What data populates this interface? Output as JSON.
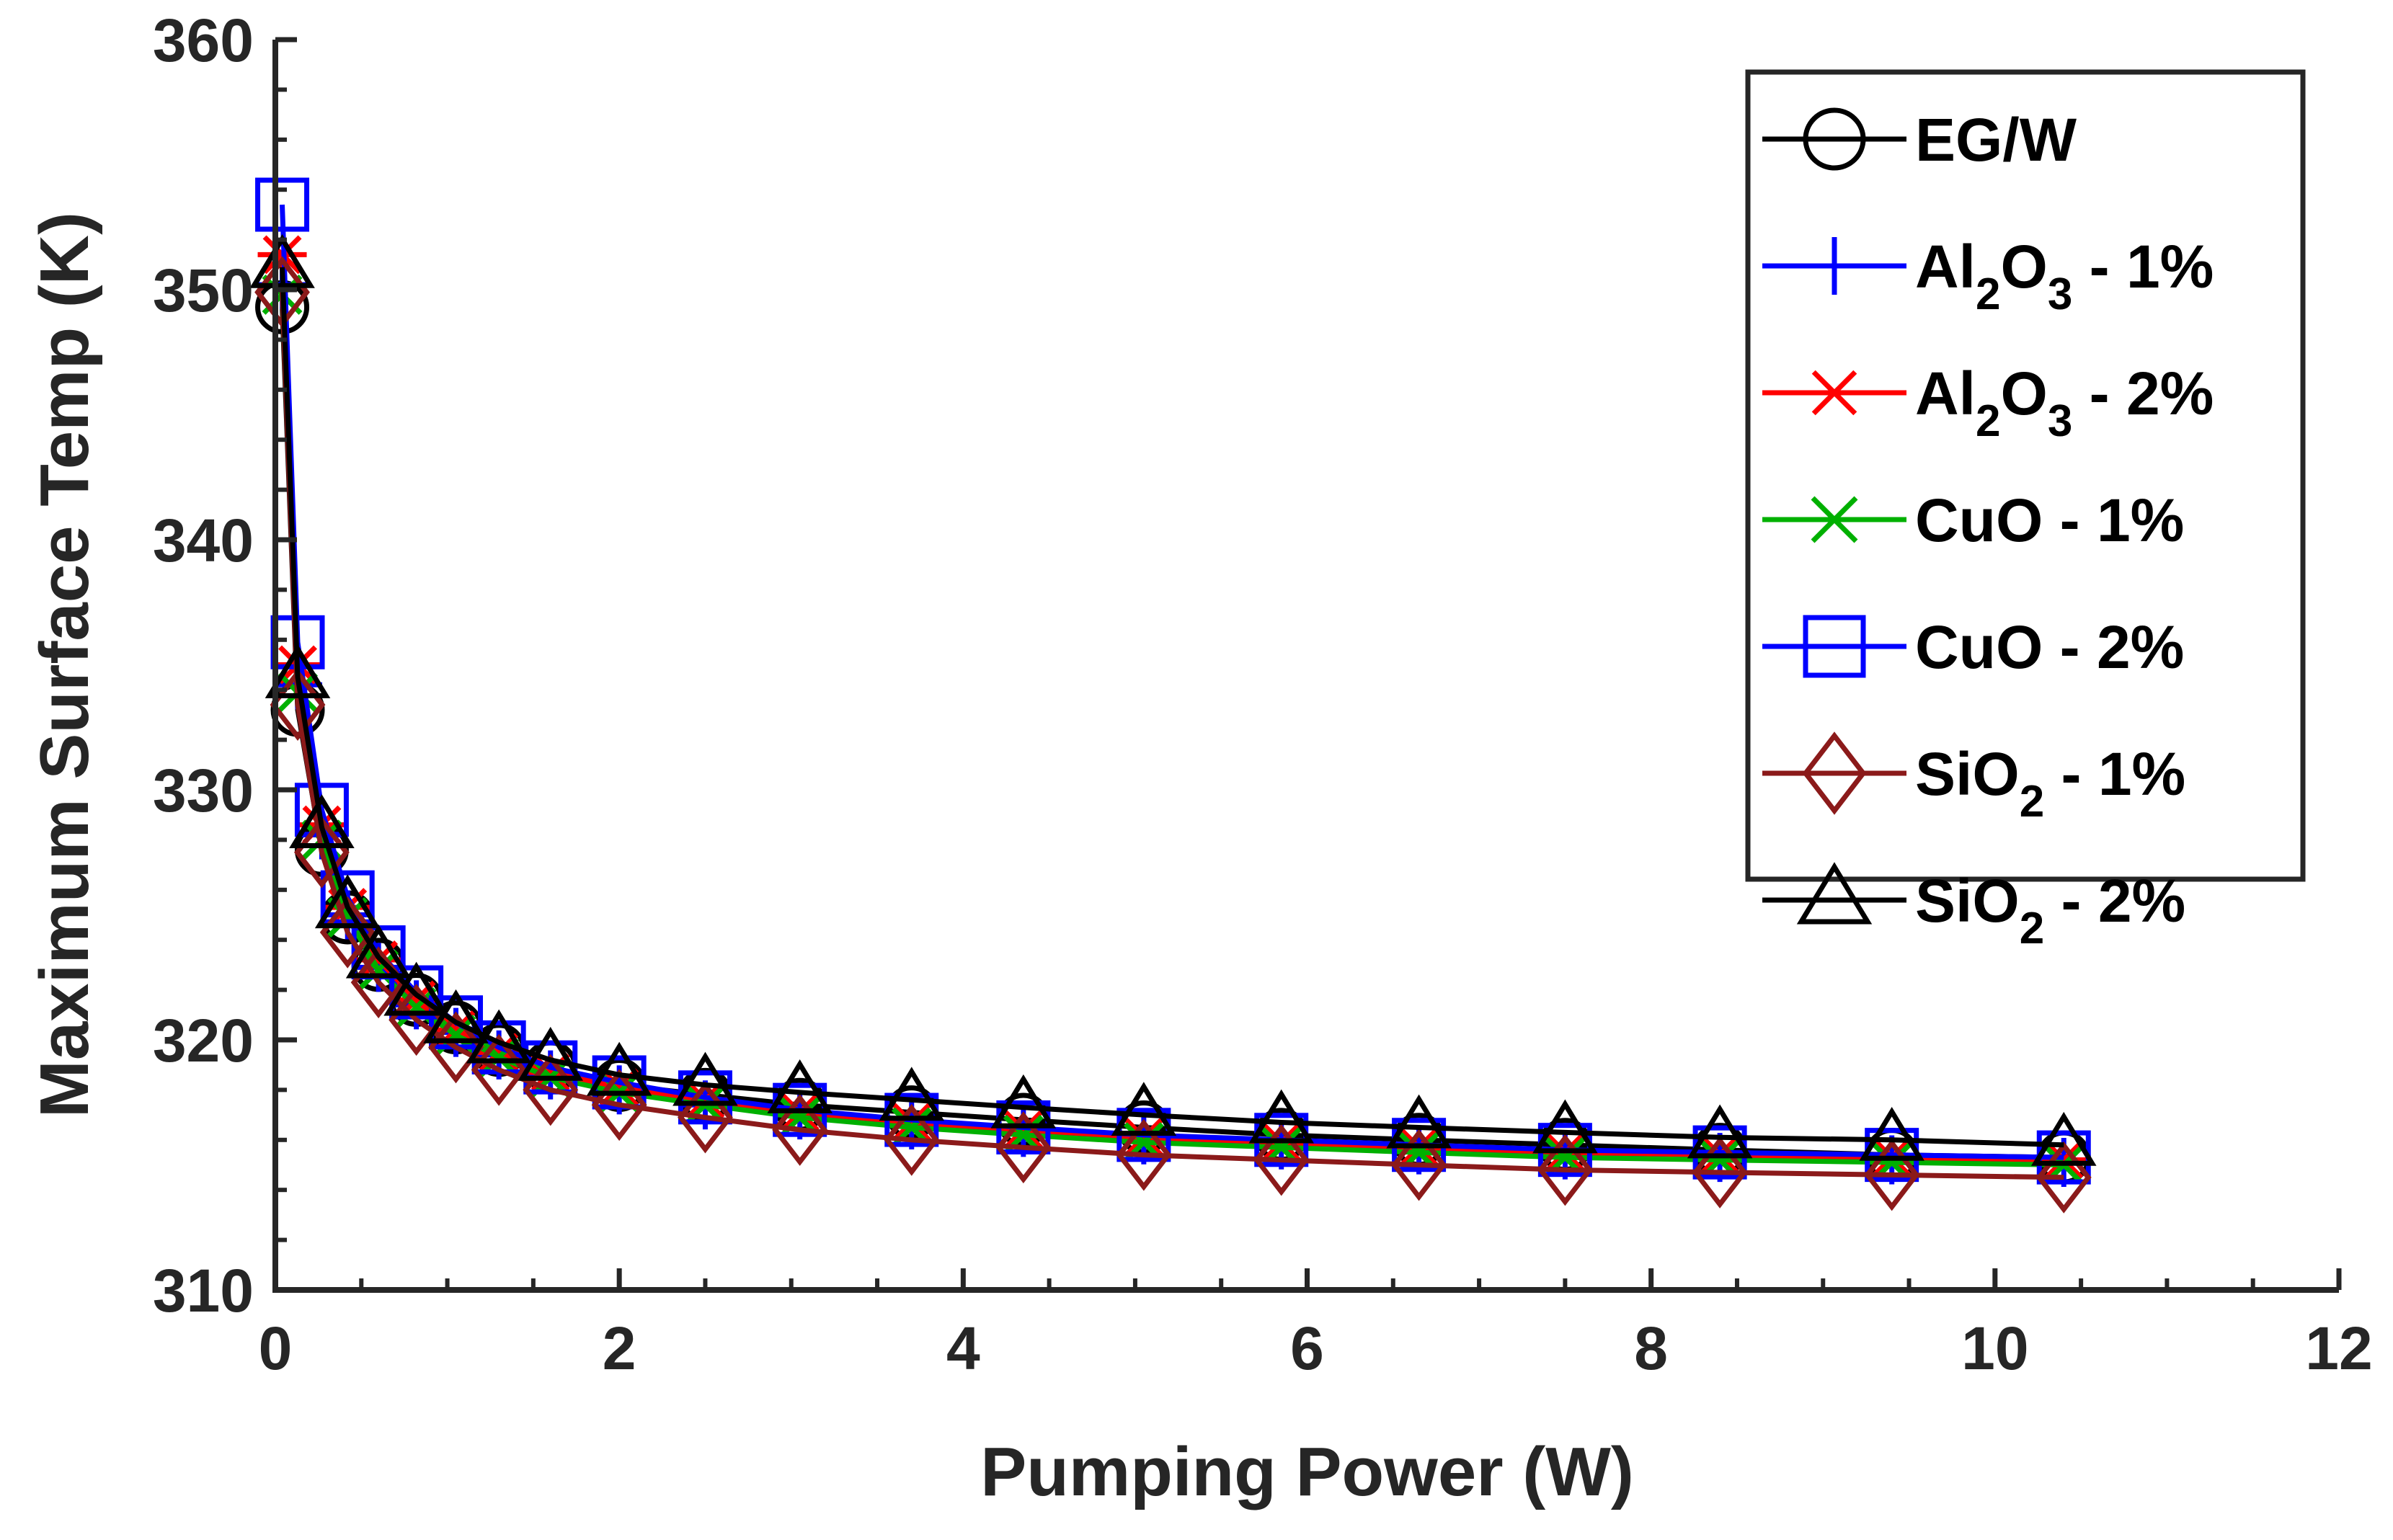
{
  "chart_data": {
    "type": "line",
    "title": "",
    "xlabel": "Pumping Power (W)",
    "ylabel": "Maximum Surface Temp (K)",
    "xlim": [
      0,
      12
    ],
    "ylim": [
      310,
      360
    ],
    "xticks": [
      0,
      2,
      4,
      6,
      8,
      10,
      12
    ],
    "yticks": [
      310,
      320,
      330,
      340,
      350,
      360
    ],
    "x_tick_labels": [
      "0",
      "2",
      "4",
      "6",
      "8",
      "10",
      "12"
    ],
    "y_tick_labels": [
      "310",
      "320",
      "330",
      "340",
      "350",
      "360"
    ],
    "grid": false,
    "legend_position": "top-right",
    "x": [
      0.04,
      0.13,
      0.27,
      0.42,
      0.6,
      0.82,
      1.05,
      1.3,
      1.6,
      2.0,
      2.5,
      3.05,
      3.7,
      4.35,
      5.05,
      5.85,
      6.65,
      7.5,
      8.4,
      9.4,
      10.4
    ],
    "series": [
      {
        "name": "EG/W",
        "label_main": "EG/W",
        "sub": "",
        "suffix": "",
        "color": "#000000",
        "marker": "circle",
        "values": [
          349.3,
          333.2,
          327.6,
          324.9,
          323.0,
          321.6,
          320.5,
          319.6,
          318.9,
          318.2,
          317.8,
          317.4,
          317.1,
          316.8,
          316.5,
          316.2,
          316.0,
          315.8,
          315.6,
          315.4,
          315.3
        ]
      },
      {
        "name": "Al2O3 - 1%",
        "label_main": "Al",
        "sub": "2",
        "mid": "O",
        "sub2": "3",
        "suffix": " - 1%",
        "color": "#0000ff",
        "marker": "plus",
        "values": [
          350.2,
          334.2,
          328.2,
          325.0,
          322.9,
          321.4,
          320.3,
          319.4,
          318.6,
          318.0,
          317.4,
          317.0,
          316.6,
          316.3,
          316.0,
          315.8,
          315.6,
          315.4,
          315.3,
          315.2,
          315.1
        ]
      },
      {
        "name": "Al2O3 - 2%",
        "label_main": "Al",
        "sub": "2",
        "mid": "O",
        "sub2": "3",
        "suffix": " - 2%",
        "color": "#ff0000",
        "marker": "asterisk",
        "values": [
          351.4,
          335.0,
          328.6,
          325.3,
          323.2,
          321.6,
          320.4,
          319.5,
          318.7,
          318.1,
          317.6,
          317.1,
          316.7,
          316.4,
          316.1,
          315.9,
          315.7,
          315.5,
          315.4,
          315.3,
          315.2
        ]
      },
      {
        "name": "CuO - 1%",
        "label_main": "CuO",
        "sub": "",
        "suffix": " - 1%",
        "color": "#00b000",
        "marker": "x",
        "values": [
          349.8,
          333.9,
          328.0,
          324.9,
          322.8,
          321.3,
          320.2,
          319.3,
          318.5,
          317.9,
          317.4,
          316.9,
          316.5,
          316.2,
          315.9,
          315.7,
          315.5,
          315.3,
          315.2,
          315.1,
          315.0
        ]
      },
      {
        "name": "CuO - 2%",
        "label_main": "CuO",
        "sub": "",
        "suffix": " - 2%",
        "color": "#0000ff",
        "marker": "square",
        "values": [
          353.4,
          335.9,
          329.2,
          325.7,
          323.5,
          321.9,
          320.7,
          319.7,
          318.9,
          318.3,
          317.7,
          317.2,
          316.8,
          316.5,
          316.2,
          316.0,
          315.8,
          315.6,
          315.5,
          315.4,
          315.3
        ]
      },
      {
        "name": "SiO2 - 1%",
        "label_main": "SiO",
        "sub": "2",
        "suffix": " - 1%",
        "color": "#8b1a1a",
        "marker": "diamond",
        "values": [
          349.9,
          333.4,
          327.5,
          324.3,
          322.3,
          320.8,
          319.7,
          318.8,
          318.0,
          317.4,
          316.9,
          316.4,
          316.0,
          315.7,
          315.4,
          315.2,
          315.0,
          314.8,
          314.7,
          314.6,
          314.5
        ]
      },
      {
        "name": "SiO2 - 2%",
        "label_main": "SiO",
        "sub": "2",
        "suffix": " - 2%",
        "color": "#000000",
        "marker": "triangle",
        "values": [
          350.9,
          334.5,
          328.5,
          325.3,
          323.3,
          321.8,
          320.7,
          319.9,
          319.2,
          318.6,
          318.2,
          317.9,
          317.6,
          317.3,
          317.0,
          316.7,
          316.5,
          316.3,
          316.1,
          316.0,
          315.8
        ]
      }
    ]
  }
}
